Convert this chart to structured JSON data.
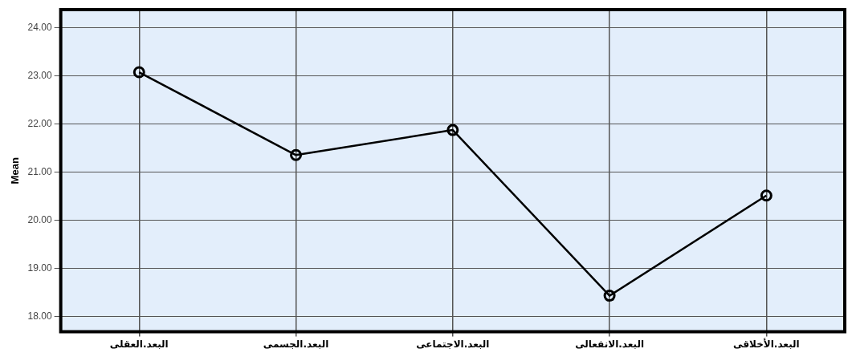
{
  "chart_data": {
    "type": "line",
    "ylabel": "Mean",
    "categories": [
      "البعد.العقلى",
      "البعد.الجسمى",
      "البعد.الاجتماعى",
      "البعد.الانفعالى",
      "البعد.الأخلاقى"
    ],
    "values": [
      23.07,
      21.35,
      21.87,
      18.43,
      20.51
    ],
    "color": "#000000",
    "ylim": [
      17.68,
      24.37
    ],
    "yticks": [
      {
        "value": 18,
        "label": "18.00"
      },
      {
        "value": 19,
        "label": "19.00"
      },
      {
        "value": 20,
        "label": "20.00"
      },
      {
        "value": 21,
        "label": "21.00"
      },
      {
        "value": 22,
        "label": "22.00"
      },
      {
        "value": 23,
        "label": "23.00"
      },
      {
        "value": 24,
        "label": "24.00"
      }
    ],
    "grid": true,
    "marker": "circle",
    "line_style": "solid",
    "legend": false
  }
}
